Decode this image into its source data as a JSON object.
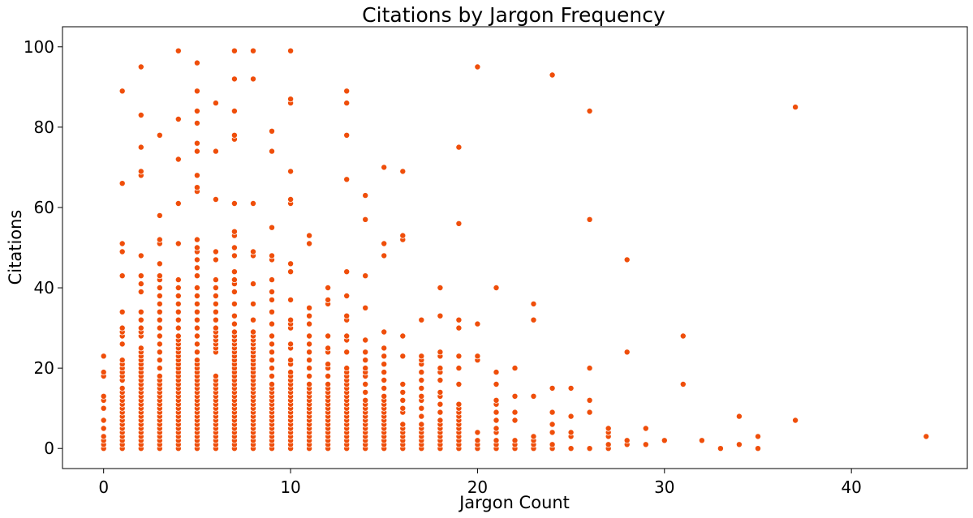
{
  "chart_data": {
    "type": "scatter",
    "title": "Citations by Jargon Frequency",
    "xlabel": "Jargon Count",
    "ylabel": "Citations",
    "xlim": [
      -2.2,
      46.2
    ],
    "ylim": [
      -5,
      105
    ],
    "xticks": [
      0,
      10,
      20,
      30,
      40
    ],
    "yticks": [
      0,
      20,
      40,
      60,
      80,
      100
    ],
    "grid": false,
    "legend": "none",
    "marker_color": "#ef4e0a",
    "marker_edge_color": "#ffffff",
    "columns": [
      {
        "x": 0,
        "y": [
          0,
          1,
          2,
          3,
          5,
          7,
          10,
          12,
          13,
          18,
          19,
          23
        ]
      },
      {
        "x": 1,
        "y": [
          0,
          1,
          2,
          3,
          4,
          5,
          6,
          7,
          8,
          9,
          10,
          11,
          12,
          13,
          14,
          15,
          17,
          18,
          19,
          20,
          21,
          22,
          26,
          28,
          29,
          30,
          34,
          43,
          49,
          51,
          66,
          89
        ]
      },
      {
        "x": 2,
        "y": [
          0,
          1,
          2,
          3,
          4,
          5,
          6,
          7,
          8,
          9,
          10,
          11,
          12,
          13,
          14,
          15,
          16,
          17,
          18,
          19,
          20,
          21,
          22,
          23,
          24,
          25,
          28,
          29,
          30,
          32,
          34,
          39,
          41,
          43,
          48,
          68,
          69,
          75,
          83,
          95
        ]
      },
      {
        "x": 3,
        "y": [
          0,
          1,
          2,
          3,
          4,
          5,
          6,
          7,
          8,
          9,
          10,
          11,
          12,
          13,
          14,
          15,
          16,
          17,
          18,
          20,
          22,
          24,
          26,
          28,
          30,
          32,
          34,
          36,
          38,
          40,
          42,
          43,
          46,
          51,
          52,
          58,
          78
        ]
      },
      {
        "x": 4,
        "y": [
          0,
          1,
          2,
          3,
          4,
          5,
          6,
          7,
          8,
          9,
          10,
          11,
          12,
          13,
          14,
          15,
          16,
          17,
          18,
          19,
          20,
          21,
          22,
          23,
          24,
          25,
          26,
          27,
          28,
          30,
          32,
          34,
          36,
          38,
          40,
          42,
          51,
          61,
          72,
          82,
          99
        ]
      },
      {
        "x": 5,
        "y": [
          0,
          1,
          2,
          3,
          4,
          5,
          6,
          7,
          8,
          9,
          10,
          11,
          12,
          13,
          14,
          15,
          16,
          17,
          18,
          19,
          20,
          21,
          22,
          24,
          26,
          28,
          30,
          32,
          34,
          36,
          38,
          40,
          43,
          45,
          47,
          49,
          50,
          52,
          64,
          65,
          68,
          74,
          76,
          81,
          84,
          89,
          96
        ]
      },
      {
        "x": 6,
        "y": [
          0,
          1,
          2,
          3,
          4,
          5,
          6,
          7,
          8,
          9,
          10,
          11,
          12,
          13,
          14,
          15,
          16,
          17,
          18,
          24,
          25,
          26,
          27,
          28,
          29,
          30,
          32,
          34,
          36,
          38,
          40,
          42,
          47,
          49,
          62,
          74,
          86
        ]
      },
      {
        "x": 7,
        "y": [
          0,
          1,
          2,
          3,
          4,
          5,
          6,
          7,
          8,
          9,
          10,
          11,
          12,
          13,
          14,
          15,
          16,
          17,
          18,
          19,
          20,
          21,
          22,
          23,
          24,
          25,
          26,
          27,
          28,
          29,
          31,
          33,
          36,
          39,
          41,
          42,
          44,
          48,
          50,
          53,
          54,
          61,
          77,
          78,
          84,
          92,
          99
        ]
      },
      {
        "x": 8,
        "y": [
          0,
          1,
          2,
          3,
          4,
          5,
          6,
          7,
          8,
          9,
          10,
          11,
          12,
          13,
          14,
          15,
          16,
          17,
          18,
          19,
          20,
          21,
          22,
          23,
          24,
          25,
          26,
          27,
          28,
          29,
          32,
          36,
          41,
          48,
          49,
          61,
          92,
          99
        ]
      },
      {
        "x": 9,
        "y": [
          0,
          1,
          2,
          3,
          4,
          5,
          6,
          7,
          8,
          9,
          10,
          11,
          12,
          13,
          14,
          15,
          16,
          18,
          20,
          22,
          24,
          26,
          28,
          31,
          34,
          37,
          39,
          42,
          47,
          48,
          55,
          74,
          79
        ]
      },
      {
        "x": 10,
        "y": [
          0,
          1,
          2,
          3,
          4,
          5,
          6,
          7,
          8,
          9,
          10,
          11,
          12,
          13,
          14,
          15,
          16,
          17,
          18,
          19,
          21,
          22,
          25,
          26,
          30,
          31,
          32,
          37,
          44,
          46,
          61,
          62,
          69,
          86,
          87,
          99
        ]
      },
      {
        "x": 11,
        "y": [
          0,
          1,
          2,
          3,
          4,
          5,
          6,
          7,
          8,
          9,
          10,
          11,
          12,
          13,
          14,
          15,
          16,
          18,
          20,
          22,
          24,
          26,
          28,
          31,
          33,
          35,
          51,
          53
        ]
      },
      {
        "x": 12,
        "y": [
          0,
          1,
          2,
          3,
          4,
          5,
          6,
          7,
          8,
          9,
          10,
          11,
          12,
          13,
          14,
          15,
          16,
          18,
          20,
          21,
          24,
          25,
          28,
          36,
          37,
          40
        ]
      },
      {
        "x": 13,
        "y": [
          0,
          1,
          2,
          3,
          4,
          5,
          6,
          7,
          8,
          9,
          10,
          11,
          12,
          13,
          14,
          15,
          16,
          17,
          18,
          19,
          20,
          24,
          27,
          28,
          32,
          33,
          38,
          44,
          67,
          78,
          86,
          89
        ]
      },
      {
        "x": 14,
        "y": [
          0,
          1,
          2,
          3,
          4,
          5,
          6,
          7,
          8,
          9,
          10,
          11,
          12,
          14,
          16,
          18,
          19,
          20,
          22,
          24,
          27,
          35,
          43,
          57,
          63
        ]
      },
      {
        "x": 15,
        "y": [
          0,
          1,
          2,
          3,
          4,
          5,
          6,
          7,
          8,
          9,
          10,
          11,
          12,
          13,
          15,
          17,
          19,
          21,
          23,
          25,
          29,
          48,
          51,
          70
        ]
      },
      {
        "x": 16,
        "y": [
          0,
          1,
          2,
          3,
          4,
          5,
          6,
          9,
          10,
          12,
          14,
          16,
          23,
          28,
          52,
          53,
          69
        ]
      },
      {
        "x": 17,
        "y": [
          0,
          1,
          2,
          3,
          4,
          5,
          6,
          8,
          10,
          12,
          13,
          15,
          17,
          19,
          21,
          22,
          23,
          32
        ]
      },
      {
        "x": 18,
        "y": [
          0,
          1,
          2,
          3,
          4,
          5,
          6,
          7,
          9,
          11,
          13,
          14,
          17,
          19,
          20,
          23,
          24,
          33,
          40
        ]
      },
      {
        "x": 19,
        "y": [
          0,
          1,
          2,
          3,
          4,
          5,
          6,
          7,
          8,
          9,
          10,
          11,
          16,
          20,
          23,
          30,
          32,
          56,
          75
        ]
      },
      {
        "x": 20,
        "y": [
          0,
          1,
          2,
          4,
          22,
          23,
          31,
          95
        ]
      },
      {
        "x": 21,
        "y": [
          0,
          1,
          2,
          4,
          5,
          7,
          9,
          11,
          12,
          16,
          19,
          40
        ]
      },
      {
        "x": 22,
        "y": [
          0,
          1,
          2,
          7,
          9,
          13,
          20
        ]
      },
      {
        "x": 23,
        "y": [
          0,
          1,
          2,
          3,
          13,
          32,
          36
        ]
      },
      {
        "x": 24,
        "y": [
          0,
          1,
          4,
          6,
          9,
          15,
          93
        ]
      },
      {
        "x": 25,
        "y": [
          0,
          3,
          4,
          8,
          15
        ]
      },
      {
        "x": 26,
        "y": [
          0,
          9,
          12,
          20,
          57,
          84
        ]
      },
      {
        "x": 27,
        "y": [
          0,
          1,
          3,
          4,
          5
        ]
      },
      {
        "x": 28,
        "y": [
          1,
          2,
          24,
          47
        ]
      },
      {
        "x": 29,
        "y": [
          1,
          5
        ]
      },
      {
        "x": 30,
        "y": [
          2
        ]
      },
      {
        "x": 31,
        "y": [
          16,
          28
        ]
      },
      {
        "x": 32,
        "y": [
          2
        ]
      },
      {
        "x": 33,
        "y": [
          0
        ]
      },
      {
        "x": 34,
        "y": [
          1,
          8
        ]
      },
      {
        "x": 35,
        "y": [
          0,
          3
        ]
      },
      {
        "x": 37,
        "y": [
          7,
          85
        ]
      },
      {
        "x": 44,
        "y": [
          3
        ]
      }
    ]
  }
}
